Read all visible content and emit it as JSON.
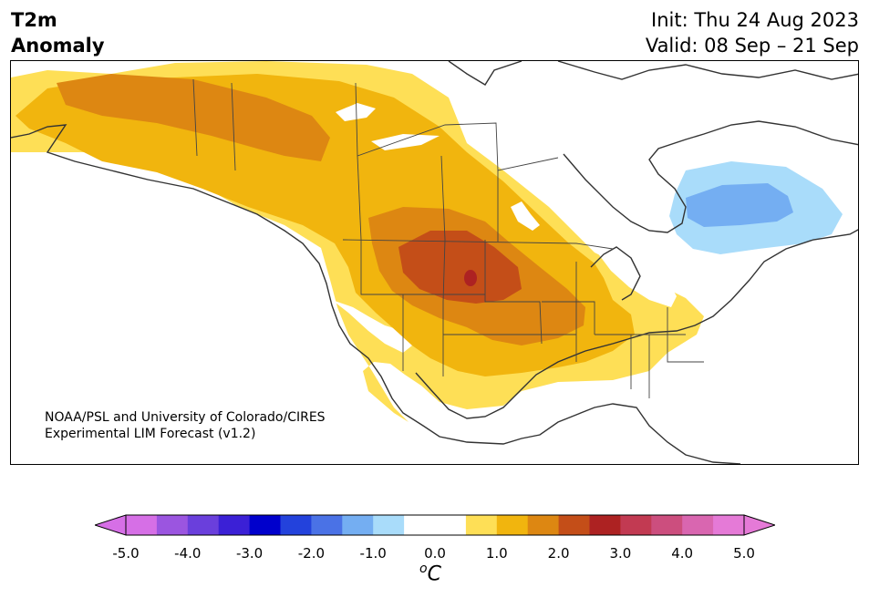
{
  "header": {
    "variable_line1": "T2m",
    "variable_line2": "Anomaly",
    "init": "Init: Thu 24 Aug 2023",
    "valid": "Valid: 08 Sep – 21 Sep"
  },
  "credit": {
    "line1": "NOAA/PSL and University of Colorado/CIRES",
    "line2": "Experimental LIM Forecast (v1.2)"
  },
  "colorbar": {
    "unit_base": "C",
    "unit_sup": "o",
    "tick_labels": [
      "-5.0",
      "-4.0",
      "-3.0",
      "-2.0",
      "-1.0",
      "0.0",
      "1.0",
      "2.0",
      "3.0",
      "4.0",
      "5.0"
    ],
    "colors": [
      "#d66fe6",
      "#9b55e0",
      "#6a3fdc",
      "#3b20d6",
      "#0000cc",
      "#2342dc",
      "#4a72e6",
      "#74aef2",
      "#a9dcfa",
      "#ffffff",
      "#ffffff",
      "#fedf56",
      "#f1b50e",
      "#dd8712",
      "#c44e18",
      "#ad2222",
      "#c23a52",
      "#cc4e7e",
      "#d966b0",
      "#e57ad7"
    ],
    "under_color": "#d66fe6",
    "over_color": "#e57ad7"
  },
  "map": {
    "land_outline_color": "#333333",
    "regions": [
      {
        "name": "anomaly-0.5-1",
        "color": "#fedf56"
      },
      {
        "name": "anomaly-1-1.5",
        "color": "#f1b50e"
      },
      {
        "name": "anomaly-1.5-2",
        "color": "#dd8712"
      },
      {
        "name": "anomaly-2-2.5",
        "color": "#c44e18"
      },
      {
        "name": "anomaly-2.5-3",
        "color": "#ad2222"
      },
      {
        "name": "anomaly-neg0.5-neg1",
        "color": "#a9dcfa"
      },
      {
        "name": "anomaly-neg1-neg1.5",
        "color": "#74aef2"
      }
    ]
  }
}
